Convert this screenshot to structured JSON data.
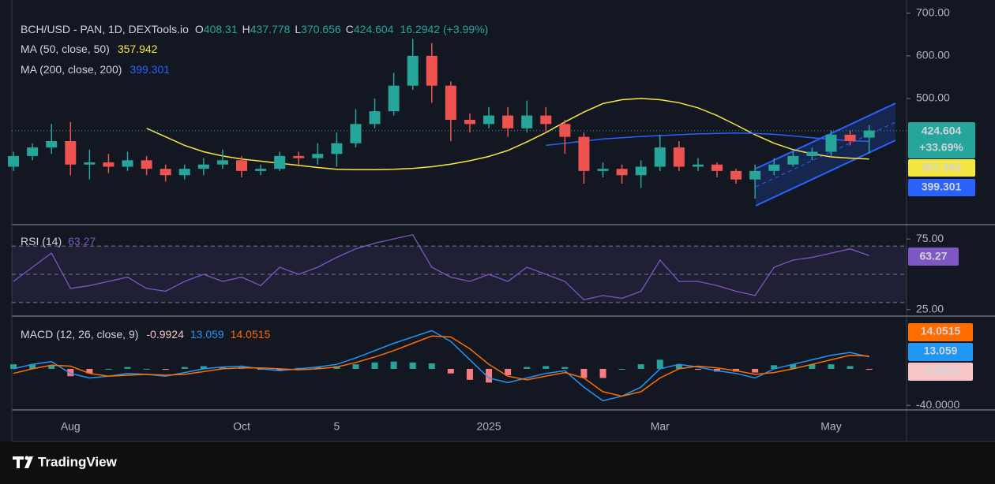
{
  "chart_data": [
    {
      "type": "candlestick",
      "categories": [
        null,
        null,
        null,
        "Aug",
        null,
        null,
        null,
        null,
        null,
        null,
        null,
        null,
        "Oct",
        null,
        null,
        null,
        null,
        "5",
        null,
        null,
        null,
        null,
        null,
        null,
        null,
        "2025",
        null,
        null,
        null,
        null,
        null,
        null,
        null,
        null,
        "Mar",
        null,
        null,
        null,
        null,
        null,
        null,
        null,
        null,
        "May",
        null,
        null
      ],
      "ohlc_labels": [
        "O",
        "H",
        "L",
        "C"
      ],
      "change_label": "16.2942 (+3.99%)",
      "badge_change": "+33.69%",
      "series": [
        {
          "name": "BCH/USD - PAN, 1D, DEXTools.io",
          "up_color": "#26a69a",
          "down_color": "#ef5350",
          "open": [
            340,
            365,
            385,
            400,
            345,
            350,
            340,
            355,
            335,
            320,
            335,
            345,
            355,
            330,
            335,
            365,
            360,
            370,
            395,
            440,
            470,
            530,
            600,
            530,
            450,
            440,
            460,
            430,
            460,
            440,
            410,
            330,
            335,
            320,
            340,
            385,
            340,
            345,
            330,
            310,
            330,
            345,
            365,
            375,
            415,
            408.31
          ],
          "high": [
            375,
            395,
            440,
            445,
            380,
            370,
            375,
            365,
            345,
            345,
            360,
            380,
            365,
            345,
            375,
            375,
            395,
            420,
            475,
            500,
            560,
            640,
            630,
            540,
            465,
            480,
            480,
            495,
            480,
            450,
            420,
            350,
            345,
            355,
            415,
            400,
            360,
            350,
            335,
            345,
            360,
            375,
            385,
            425,
            425,
            437.778
          ],
          "low": [
            330,
            355,
            370,
            320,
            310,
            325,
            330,
            320,
            305,
            310,
            320,
            335,
            315,
            320,
            330,
            345,
            345,
            340,
            385,
            430,
            460,
            520,
            490,
            400,
            420,
            430,
            410,
            420,
            420,
            370,
            300,
            315,
            300,
            290,
            330,
            330,
            330,
            315,
            300,
            265,
            320,
            340,
            355,
            365,
            390,
            370.656
          ],
          "close": [
            365,
            385,
            400,
            345,
            350,
            340,
            355,
            335,
            320,
            335,
            345,
            355,
            330,
            335,
            365,
            360,
            370,
            395,
            440,
            470,
            530,
            600,
            530,
            450,
            440,
            460,
            430,
            460,
            440,
            410,
            330,
            335,
            320,
            340,
            385,
            340,
            345,
            330,
            310,
            330,
            345,
            365,
            375,
            415,
            400,
            424.604
          ]
        }
      ],
      "overlays": [
        {
          "name": "MA (50, close, 50)",
          "color": "#f5e642",
          "values": [
            null,
            null,
            null,
            null,
            null,
            null,
            null,
            430,
            410,
            390,
            375,
            365,
            358,
            353,
            348,
            343,
            338,
            334,
            333,
            333,
            334,
            336,
            340,
            346,
            354,
            364,
            378,
            398,
            420,
            445,
            468,
            488,
            497,
            500,
            497,
            490,
            478,
            460,
            438,
            415,
            395,
            380,
            370,
            363,
            360,
            357.942
          ]
        },
        {
          "name": "MA (200, close, 200)",
          "color": "#2962ff",
          "values": [
            null,
            null,
            null,
            null,
            null,
            null,
            null,
            null,
            null,
            null,
            null,
            null,
            null,
            null,
            null,
            null,
            null,
            null,
            null,
            null,
            null,
            null,
            null,
            null,
            null,
            null,
            null,
            null,
            390,
            395,
            400,
            405,
            408,
            411,
            413,
            415,
            417,
            418,
            419,
            418,
            416,
            412,
            408,
            404,
            401,
            399.301
          ]
        }
      ],
      "ylim": [
        204,
        731
      ],
      "yticks": [
        {
          "value": 700,
          "label": "700.00"
        },
        {
          "value": 600,
          "label": "600.00"
        },
        {
          "value": 500,
          "label": "500.00"
        }
      ]
    },
    {
      "type": "line",
      "title": "RSI (14)",
      "color": "#7e57c2",
      "values": [
        45,
        55,
        65,
        40,
        42,
        45,
        48,
        40,
        38,
        45,
        50,
        45,
        48,
        42,
        55,
        50,
        55,
        62,
        68,
        72,
        75,
        78,
        55,
        48,
        45,
        50,
        45,
        55,
        50,
        45,
        32,
        35,
        33,
        38,
        60,
        45,
        45,
        42,
        38,
        35,
        55,
        60,
        62,
        65,
        68,
        63.27
      ],
      "levels": [
        70,
        50,
        30
      ],
      "ylim": [
        21,
        84
      ],
      "yticks": [
        {
          "value": 75,
          "label": "75.00"
        },
        {
          "value": 25,
          "label": "25.00"
        }
      ]
    },
    {
      "type": "macd",
      "title": "MACD (12, 26, close, 9)",
      "histogram": {
        "color": "#26a69a",
        "negative_color": "#f77c80",
        "values": [
          5,
          5,
          4,
          -8,
          -5,
          0,
          2,
          0,
          -1,
          2,
          3,
          2,
          2,
          -1,
          -2,
          1,
          2,
          3,
          5,
          7,
          8,
          7,
          6,
          -5,
          -12,
          -15,
          -7,
          2,
          3,
          2,
          -10,
          -10,
          0,
          5,
          10,
          5,
          -1,
          -3,
          -3,
          -4,
          4,
          5,
          5,
          5,
          3,
          -0.9924
        ]
      },
      "series": [
        {
          "color": "#2196f3",
          "values": [
            0,
            5,
            8,
            -5,
            -10,
            -8,
            -5,
            -6,
            -8,
            -4,
            0,
            2,
            3,
            0,
            -2,
            0,
            2,
            5,
            12,
            20,
            28,
            35,
            42,
            30,
            10,
            -10,
            -15,
            -10,
            -5,
            -2,
            -20,
            -35,
            -30,
            -20,
            0,
            5,
            2,
            -2,
            -5,
            -10,
            0,
            5,
            10,
            15,
            18,
            13.059
          ]
        },
        {
          "color": "#ff6d00",
          "values": [
            -5,
            0,
            4,
            3,
            -5,
            -8,
            -7,
            -6,
            -7,
            -6,
            -3,
            0,
            1,
            1,
            0,
            -1,
            0,
            2,
            7,
            13,
            20,
            28,
            36,
            35,
            22,
            5,
            -8,
            -12,
            -8,
            -4,
            -10,
            -25,
            -30,
            -25,
            -10,
            0,
            3,
            1,
            -2,
            -6,
            -4,
            0,
            5,
            10,
            15,
            14.0515
          ]
        }
      ],
      "ylim": [
        -45,
        57
      ],
      "yticks": [
        {
          "value": -40,
          "label": "-40.0000"
        }
      ]
    }
  ],
  "brand": "TradingView"
}
